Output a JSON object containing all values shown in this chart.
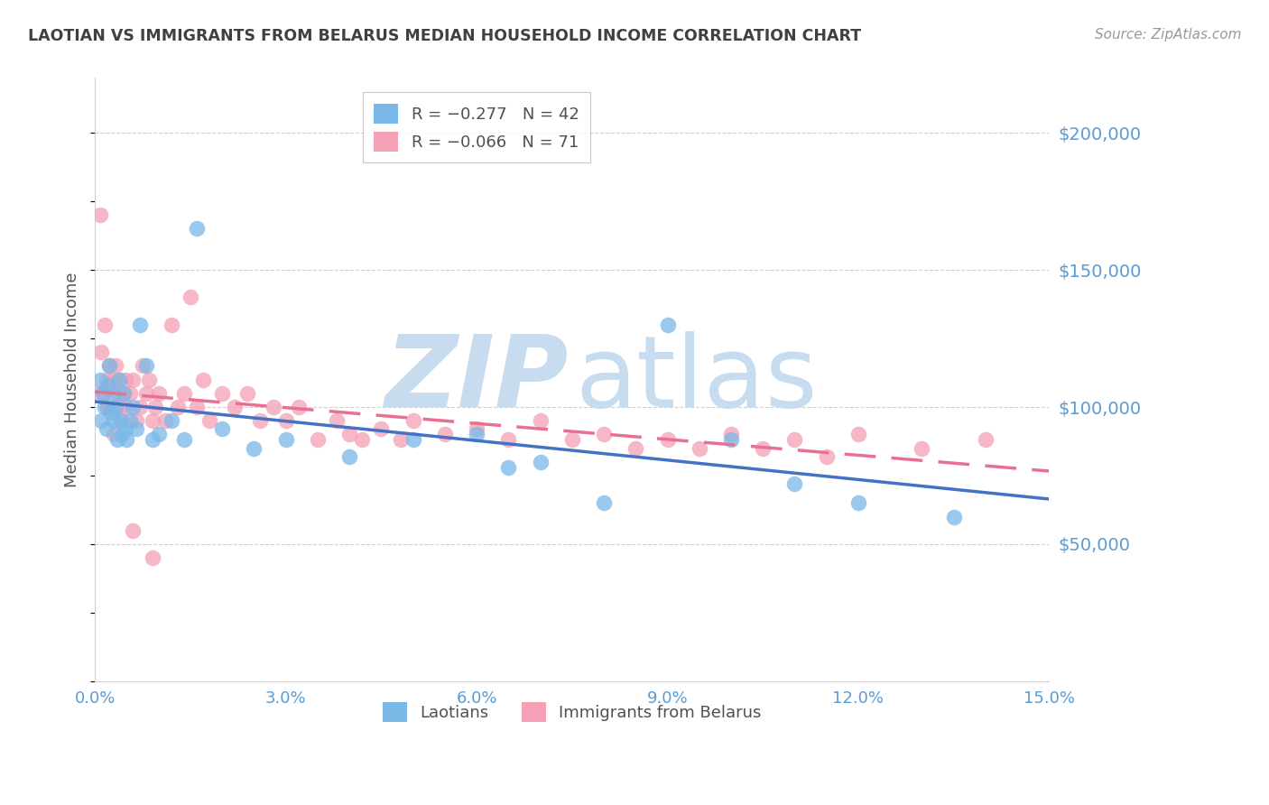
{
  "title": "LAOTIAN VS IMMIGRANTS FROM BELARUS MEDIAN HOUSEHOLD INCOME CORRELATION CHART",
  "source": "Source: ZipAtlas.com",
  "ylabel": "Median Household Income",
  "ytick_labels": [
    "$50,000",
    "$100,000",
    "$150,000",
    "$200,000"
  ],
  "ytick_values": [
    50000,
    100000,
    150000,
    200000
  ],
  "xlim": [
    0.0,
    0.15
  ],
  "ylim": [
    0,
    220000
  ],
  "xticks": [
    0.0,
    0.03,
    0.06,
    0.09,
    0.12,
    0.15
  ],
  "xtick_labels": [
    "0.0%",
    "3.0%",
    "6.0%",
    "9.0%",
    "12.0%",
    "15.0%"
  ],
  "laotian_x": [
    0.0008,
    0.001,
    0.0012,
    0.0015,
    0.0018,
    0.002,
    0.0022,
    0.0025,
    0.0028,
    0.003,
    0.0033,
    0.0035,
    0.0038,
    0.004,
    0.0042,
    0.0045,
    0.0048,
    0.005,
    0.0055,
    0.006,
    0.0065,
    0.007,
    0.008,
    0.009,
    0.01,
    0.012,
    0.014,
    0.016,
    0.02,
    0.025,
    0.03,
    0.04,
    0.05,
    0.06,
    0.065,
    0.07,
    0.08,
    0.09,
    0.1,
    0.11,
    0.12,
    0.135
  ],
  "laotian_y": [
    110000,
    95000,
    105000,
    100000,
    92000,
    108000,
    115000,
    98000,
    105000,
    95000,
    100000,
    88000,
    110000,
    95000,
    90000,
    105000,
    92000,
    88000,
    95000,
    100000,
    92000,
    130000,
    115000,
    88000,
    90000,
    95000,
    88000,
    165000,
    92000,
    85000,
    88000,
    82000,
    88000,
    90000,
    78000,
    80000,
    65000,
    130000,
    88000,
    72000,
    65000,
    60000
  ],
  "belarus_x": [
    0.0005,
    0.0008,
    0.001,
    0.0012,
    0.0015,
    0.0018,
    0.002,
    0.0022,
    0.0025,
    0.0028,
    0.003,
    0.0033,
    0.0035,
    0.0038,
    0.004,
    0.0042,
    0.0045,
    0.0048,
    0.005,
    0.0055,
    0.006,
    0.0065,
    0.007,
    0.0075,
    0.008,
    0.0085,
    0.009,
    0.0095,
    0.01,
    0.011,
    0.012,
    0.013,
    0.014,
    0.015,
    0.016,
    0.017,
    0.018,
    0.02,
    0.022,
    0.024,
    0.026,
    0.028,
    0.03,
    0.032,
    0.035,
    0.038,
    0.04,
    0.042,
    0.045,
    0.048,
    0.05,
    0.055,
    0.06,
    0.065,
    0.07,
    0.075,
    0.08,
    0.085,
    0.09,
    0.095,
    0.1,
    0.105,
    0.11,
    0.115,
    0.12,
    0.13,
    0.14,
    0.002,
    0.003,
    0.006,
    0.009
  ],
  "belarus_y": [
    105000,
    170000,
    120000,
    105000,
    130000,
    110000,
    100000,
    115000,
    108000,
    110000,
    100000,
    115000,
    105000,
    110000,
    100000,
    95000,
    105000,
    110000,
    100000,
    105000,
    110000,
    95000,
    100000,
    115000,
    105000,
    110000,
    95000,
    100000,
    105000,
    95000,
    130000,
    100000,
    105000,
    140000,
    100000,
    110000,
    95000,
    105000,
    100000,
    105000,
    95000,
    100000,
    95000,
    100000,
    88000,
    95000,
    90000,
    88000,
    92000,
    88000,
    95000,
    90000,
    92000,
    88000,
    95000,
    88000,
    90000,
    85000,
    88000,
    85000,
    90000,
    85000,
    88000,
    82000,
    90000,
    85000,
    88000,
    100000,
    90000,
    55000,
    45000
  ],
  "blue_color": "#7AB8E8",
  "pink_color": "#F4A0B5",
  "trendline_blue_color": "#4472C4",
  "trendline_pink_color": "#E87090",
  "grid_color": "#D0D0D0",
  "axis_tick_color": "#5B9BD5",
  "ytick_label_color": "#5B9BD5",
  "title_color": "#404040",
  "ylabel_color": "#555555",
  "source_color": "#999999",
  "background_color": "#FFFFFF",
  "watermark_color": "#C8DCF0",
  "legend_edge_color": "#BBBBBB"
}
